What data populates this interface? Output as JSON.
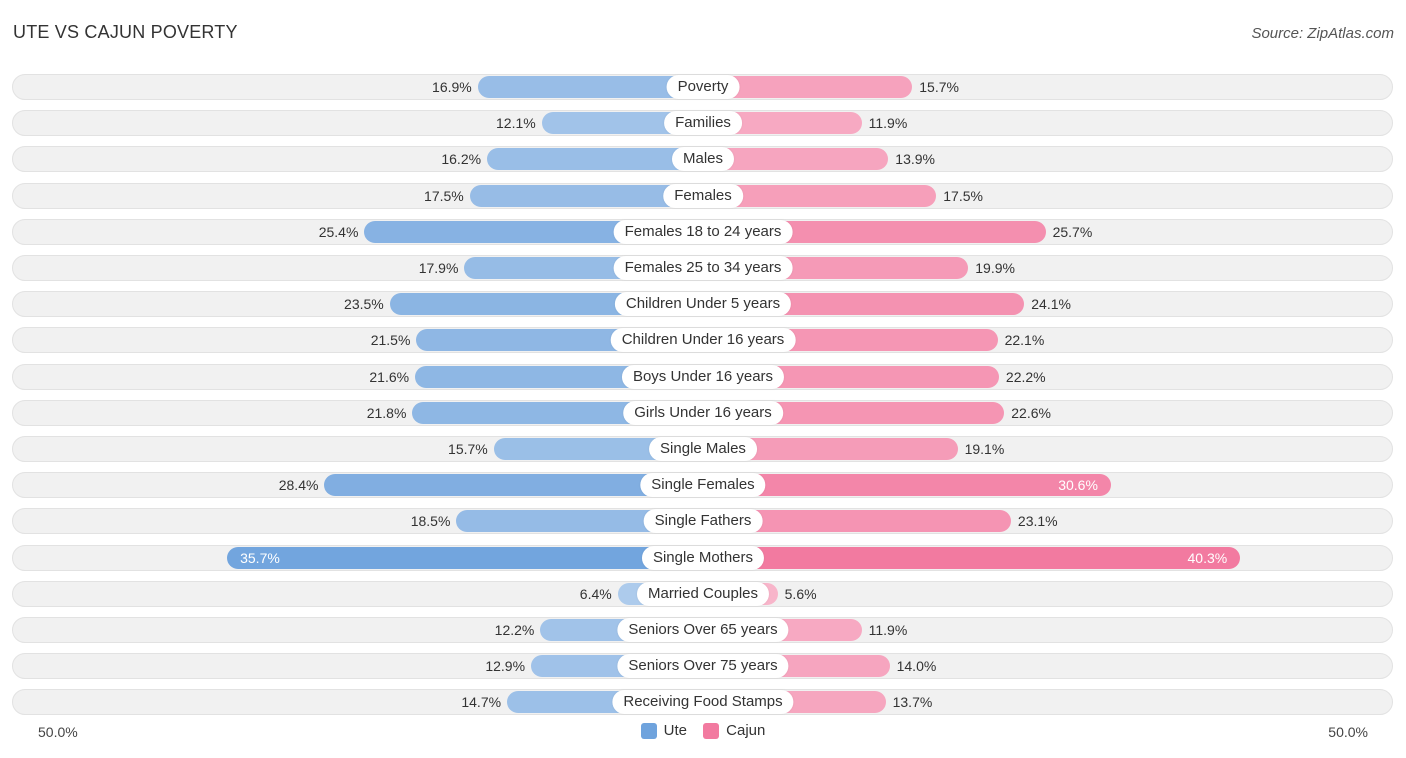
{
  "header": {
    "title": "UTE VS CAJUN POVERTY",
    "source": "Source: ZipAtlas.com"
  },
  "chart_data": {
    "type": "bar",
    "orientation": "horizontal-diverging",
    "title": "UTE VS CAJUN POVERTY",
    "categories": [
      "Poverty",
      "Families",
      "Males",
      "Females",
      "Females 18 to 24 years",
      "Females 25 to 34 years",
      "Children Under 5 years",
      "Children Under 16 years",
      "Boys Under 16 years",
      "Girls Under 16 years",
      "Single Males",
      "Single Females",
      "Single Fathers",
      "Single Mothers",
      "Married Couples",
      "Seniors Over 65 years",
      "Seniors Over 75 years",
      "Receiving Food Stamps"
    ],
    "series": [
      {
        "name": "Ute",
        "color": "#6fa3dd",
        "values": [
          16.9,
          12.1,
          16.2,
          17.5,
          25.4,
          17.9,
          23.5,
          21.5,
          21.6,
          21.8,
          15.7,
          28.4,
          18.5,
          35.7,
          6.4,
          12.2,
          12.9,
          14.7
        ],
        "labels": [
          "16.9%",
          "12.1%",
          "16.2%",
          "17.5%",
          "25.4%",
          "17.9%",
          "23.5%",
          "21.5%",
          "21.6%",
          "21.8%",
          "15.7%",
          "28.4%",
          "18.5%",
          "35.7%",
          "6.4%",
          "12.2%",
          "12.9%",
          "14.7%"
        ]
      },
      {
        "name": "Cajun",
        "color": "#f27aa0",
        "values": [
          15.7,
          11.9,
          13.9,
          17.5,
          25.7,
          19.9,
          24.1,
          22.1,
          22.2,
          22.6,
          19.1,
          30.6,
          23.1,
          40.3,
          5.6,
          11.9,
          14.0,
          13.7
        ],
        "labels": [
          "15.7%",
          "11.9%",
          "13.9%",
          "17.5%",
          "25.7%",
          "19.9%",
          "24.1%",
          "22.1%",
          "22.2%",
          "22.6%",
          "19.1%",
          "30.6%",
          "23.1%",
          "40.3%",
          "5.6%",
          "11.9%",
          "14.0%",
          "13.7%"
        ]
      }
    ],
    "xlim": [
      -50,
      50
    ],
    "axis_labels": {
      "left": "50.0%",
      "right": "50.0%"
    },
    "legend": [
      "Ute",
      "Cajun"
    ],
    "legend_position": "bottom-center"
  }
}
